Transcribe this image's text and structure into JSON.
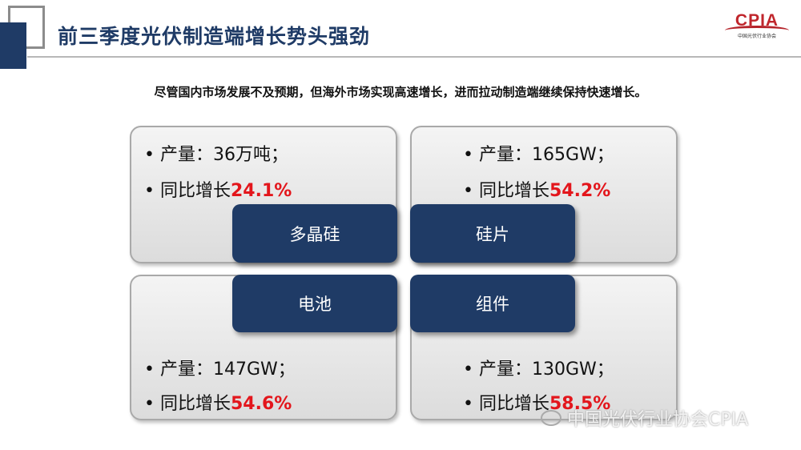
{
  "header": {
    "title": "前三季度光伏制造端增长势头强劲",
    "logo_text": "CPIA",
    "logo_subtext": "中国光伏行业协会"
  },
  "subtitle": "尽管国内市场发展不及预期，但海外市场实现高速增长，进而拉动制造端继续保持快速增长。",
  "segments": [
    {
      "name": "多晶硅",
      "output": "• 产量：36万吨；",
      "growth_label": "• 同比增长",
      "growth": "24.1%"
    },
    {
      "name": "硅片",
      "output": "• 产量：165GW；",
      "growth_label": "• 同比增长",
      "growth": "54.2%"
    },
    {
      "name": "电池",
      "output": "• 产量：147GW；",
      "growth_label": "• 同比增长",
      "growth": "54.6%"
    },
    {
      "name": "组件",
      "output": "• 产量：130GW；",
      "growth_label": "• 同比增长",
      "growth": "58.5%"
    }
  ],
  "watermark": "中国光伏行业协会CPIA",
  "colors": {
    "navy": "#1f3b66",
    "highlight": "#e3161c"
  }
}
